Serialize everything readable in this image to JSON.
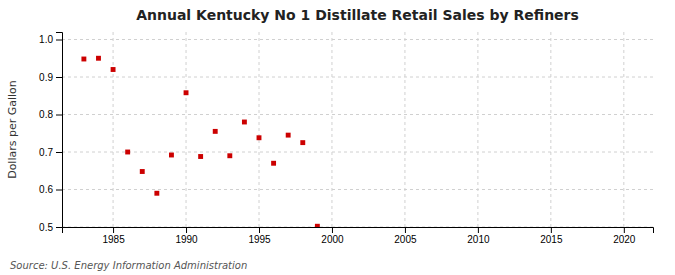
{
  "chart_data": {
    "type": "scatter",
    "title": "Annual Kentucky No 1 Distillate Retail Sales by Refiners",
    "ylabel": "Dollars per Gallon",
    "annotations": [
      "Source: U.S. Energy Information Administration"
    ],
    "x": [
      1983,
      1984,
      1985,
      1986,
      1987,
      1988,
      1989,
      1990,
      1991,
      1992,
      1993,
      1994,
      1995,
      1996,
      1997,
      1998,
      1999
    ],
    "values": [
      0.948,
      0.95,
      0.92,
      0.7,
      0.648,
      0.59,
      0.692,
      0.858,
      0.688,
      0.755,
      0.69,
      0.78,
      0.738,
      0.67,
      0.745,
      0.725,
      0.502
    ],
    "color": "#cc0000",
    "marker": "square",
    "xlim": [
      1981.5,
      2022
    ],
    "ylim": [
      0.5,
      1.02
    ],
    "xticks": [
      1985,
      1990,
      1995,
      2000,
      2005,
      2010,
      2015,
      2020
    ],
    "yticks": [
      0.5,
      0.6,
      0.7,
      0.8,
      0.9,
      {
        "value": 1.0,
        "label": "1.0"
      }
    ],
    "grid": true
  }
}
